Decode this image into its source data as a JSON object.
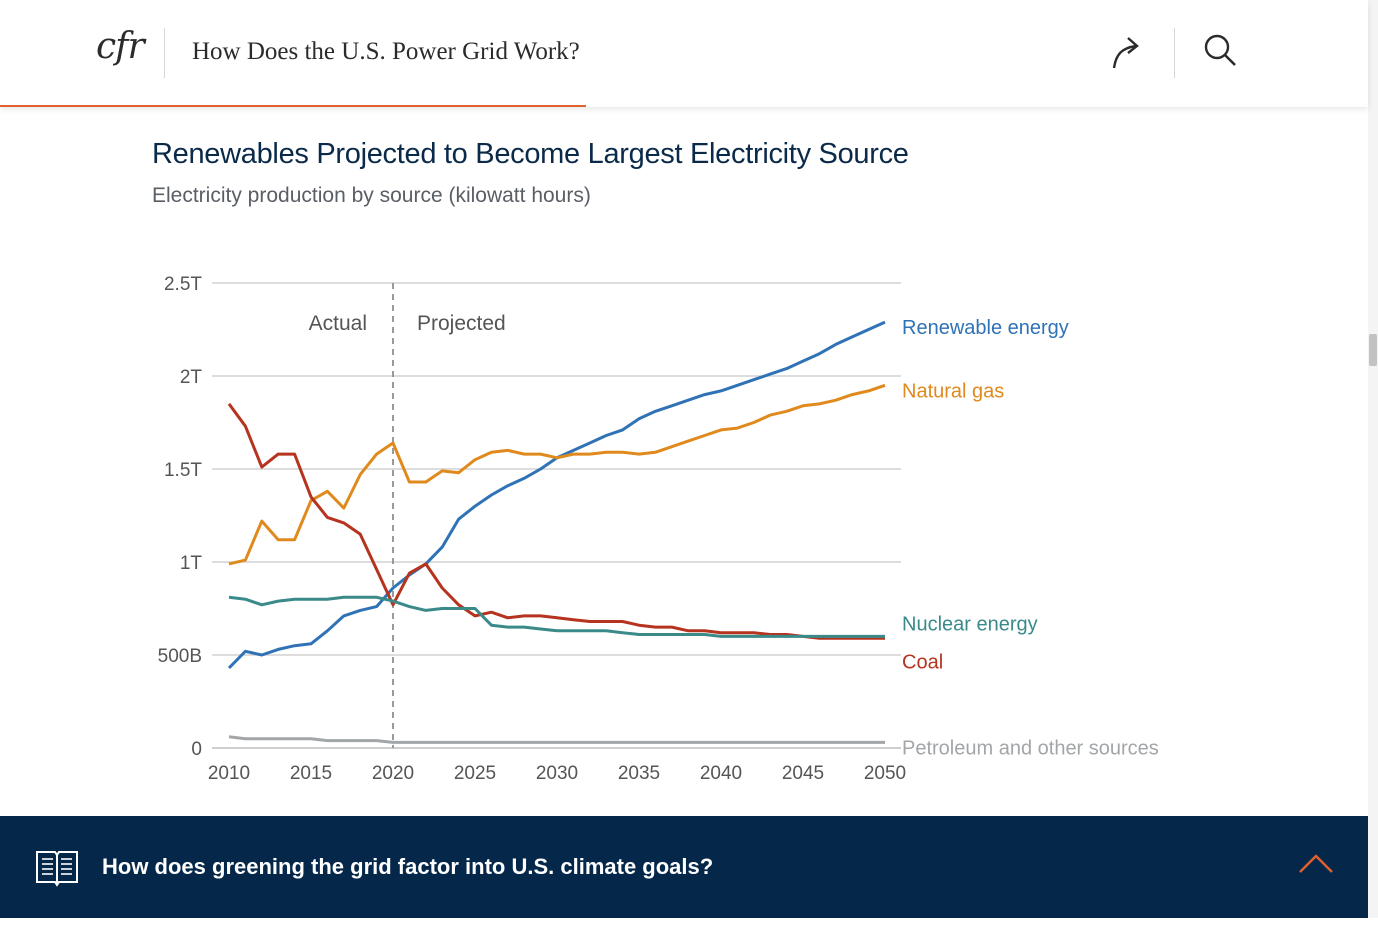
{
  "header": {
    "logo": "cfr",
    "title": "How Does the U.S. Power Grid Work?",
    "share_icon": "share-arrow-icon",
    "search_icon": "search-icon",
    "progress_fraction": 0.425,
    "accent": "#e0612c"
  },
  "chart_data": {
    "type": "line",
    "title": "Renewables Projected to Become Largest Electricity Source",
    "subtitle": "Electricity production by source (kilowatt hours)",
    "xlabel": "",
    "ylabel": "",
    "xlim": [
      2010,
      2050
    ],
    "ylim": [
      0,
      2500000000000
    ],
    "y_ticks": [
      {
        "value": 0,
        "label": "0"
      },
      {
        "value": 500000000000,
        "label": "500B"
      },
      {
        "value": 1000000000000,
        "label": "1T"
      },
      {
        "value": 1500000000000,
        "label": "1.5T"
      },
      {
        "value": 2000000000000,
        "label": "2T"
      },
      {
        "value": 2500000000000,
        "label": "2.5T"
      }
    ],
    "x_ticks": [
      "2010",
      "2015",
      "2020",
      "2025",
      "2030",
      "2035",
      "2040",
      "2045",
      "2050"
    ],
    "grid": true,
    "legend": "labels at line ends (right)",
    "annotations": {
      "divider_year": 2020,
      "left_label": "Actual",
      "right_label": "Projected"
    },
    "x": [
      2010,
      2011,
      2012,
      2013,
      2014,
      2015,
      2016,
      2017,
      2018,
      2019,
      2020,
      2021,
      2022,
      2023,
      2024,
      2025,
      2026,
      2027,
      2028,
      2029,
      2030,
      2031,
      2032,
      2033,
      2034,
      2035,
      2036,
      2037,
      2038,
      2039,
      2040,
      2041,
      2042,
      2043,
      2044,
      2045,
      2046,
      2047,
      2048,
      2049,
      2050
    ],
    "series": [
      {
        "name": "Renewable energy",
        "color": "#2f72b5",
        "values": [
          0.43,
          0.52,
          0.5,
          0.53,
          0.55,
          0.56,
          0.63,
          0.71,
          0.74,
          0.76,
          0.86,
          0.93,
          0.99,
          1.08,
          1.23,
          1.3,
          1.36,
          1.41,
          1.45,
          1.5,
          1.56,
          1.6,
          1.64,
          1.68,
          1.71,
          1.77,
          1.81,
          1.84,
          1.87,
          1.9,
          1.92,
          1.95,
          1.98,
          2.01,
          2.04,
          2.08,
          2.12,
          2.17,
          2.21,
          2.25,
          2.29
        ]
      },
      {
        "name": "Natural gas",
        "color": "#e08a1e",
        "values": [
          0.99,
          1.01,
          1.22,
          1.12,
          1.12,
          1.33,
          1.38,
          1.29,
          1.47,
          1.58,
          1.64,
          1.43,
          1.43,
          1.49,
          1.48,
          1.55,
          1.59,
          1.6,
          1.58,
          1.58,
          1.56,
          1.58,
          1.58,
          1.59,
          1.59,
          1.58,
          1.59,
          1.62,
          1.65,
          1.68,
          1.71,
          1.72,
          1.75,
          1.79,
          1.81,
          1.84,
          1.85,
          1.87,
          1.9,
          1.92,
          1.95
        ]
      },
      {
        "name": "Coal",
        "color": "#b5331f",
        "values": [
          1.85,
          1.73,
          1.51,
          1.58,
          1.58,
          1.35,
          1.24,
          1.21,
          1.15,
          0.96,
          0.77,
          0.94,
          0.99,
          0.86,
          0.77,
          0.71,
          0.73,
          0.7,
          0.71,
          0.71,
          0.7,
          0.69,
          0.68,
          0.68,
          0.68,
          0.66,
          0.65,
          0.65,
          0.63,
          0.63,
          0.62,
          0.62,
          0.62,
          0.61,
          0.61,
          0.6,
          0.59,
          0.59,
          0.59,
          0.59,
          0.59
        ]
      },
      {
        "name": "Nuclear energy",
        "color": "#3a8a8a",
        "values": [
          0.81,
          0.8,
          0.77,
          0.79,
          0.8,
          0.8,
          0.8,
          0.81,
          0.81,
          0.81,
          0.79,
          0.76,
          0.74,
          0.75,
          0.75,
          0.75,
          0.66,
          0.65,
          0.65,
          0.64,
          0.63,
          0.63,
          0.63,
          0.63,
          0.62,
          0.61,
          0.61,
          0.61,
          0.61,
          0.61,
          0.6,
          0.6,
          0.6,
          0.6,
          0.6,
          0.6,
          0.6,
          0.6,
          0.6,
          0.6,
          0.6
        ]
      },
      {
        "name": "Petroleum and other sources",
        "color": "#a3a6a8",
        "values": [
          0.06,
          0.05,
          0.05,
          0.05,
          0.05,
          0.05,
          0.04,
          0.04,
          0.04,
          0.04,
          0.03,
          0.03,
          0.03,
          0.03,
          0.03,
          0.03,
          0.03,
          0.03,
          0.03,
          0.03,
          0.03,
          0.03,
          0.03,
          0.03,
          0.03,
          0.03,
          0.03,
          0.03,
          0.03,
          0.03,
          0.03,
          0.03,
          0.03,
          0.03,
          0.03,
          0.03,
          0.03,
          0.03,
          0.03,
          0.03,
          0.03
        ]
      }
    ],
    "values_unit_note_scale": 1000000000000
  },
  "footer": {
    "question": "How does greening the grid factor into U.S. climate goals?",
    "book_icon": "book-icon",
    "collapse_icon": "chevron-up-icon",
    "background": "#04274a"
  }
}
